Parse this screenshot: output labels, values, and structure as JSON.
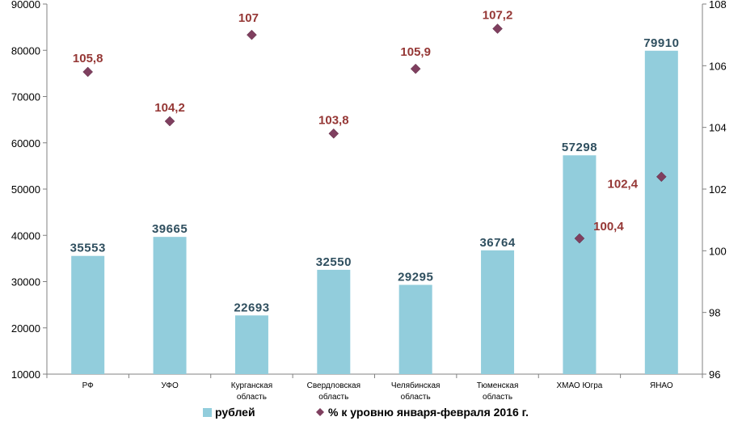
{
  "chart_data": {
    "type": "bar+scatter",
    "categories": [
      [
        "РФ"
      ],
      [
        "УФО"
      ],
      [
        "Курганская",
        "область"
      ],
      [
        "Свердловская",
        "область"
      ],
      [
        "Челябинская",
        "область"
      ],
      [
        "Тюменская",
        "область"
      ],
      [
        "ХМАО Югра"
      ],
      [
        "ЯНАО"
      ]
    ],
    "series": [
      {
        "name": "рублей",
        "type": "bar",
        "axis": "left",
        "color": "#92cddc",
        "values": [
          35553,
          39665,
          22693,
          32550,
          29295,
          36764,
          57298,
          79910
        ],
        "labels": [
          "35553",
          "39665",
          "22693",
          "32550",
          "29295",
          "36764",
          "57298",
          "79910"
        ]
      },
      {
        "name": "% к  уровню  января-февраля  2016 г.",
        "type": "scatter",
        "axis": "right",
        "color": "#7f3f5f",
        "values": [
          105.8,
          104.2,
          107,
          103.8,
          105.9,
          107.2,
          100.4,
          102.4
        ],
        "labels": [
          "105,8",
          "104,2",
          "107",
          "103,8",
          "105,9",
          "107,2",
          "100,4",
          "102,4"
        ]
      }
    ],
    "y_left": {
      "min": 10000,
      "max": 90000,
      "step": 10000,
      "ticks": [
        "10000",
        "20000",
        "30000",
        "40000",
        "50000",
        "60000",
        "70000",
        "80000",
        "90000"
      ]
    },
    "y_right": {
      "min": 96,
      "max": 108,
      "step": 2,
      "ticks": [
        "96",
        "98",
        "100",
        "102",
        "104",
        "106",
        "108"
      ]
    },
    "legend": {
      "position": "bottom"
    },
    "grid": false
  }
}
